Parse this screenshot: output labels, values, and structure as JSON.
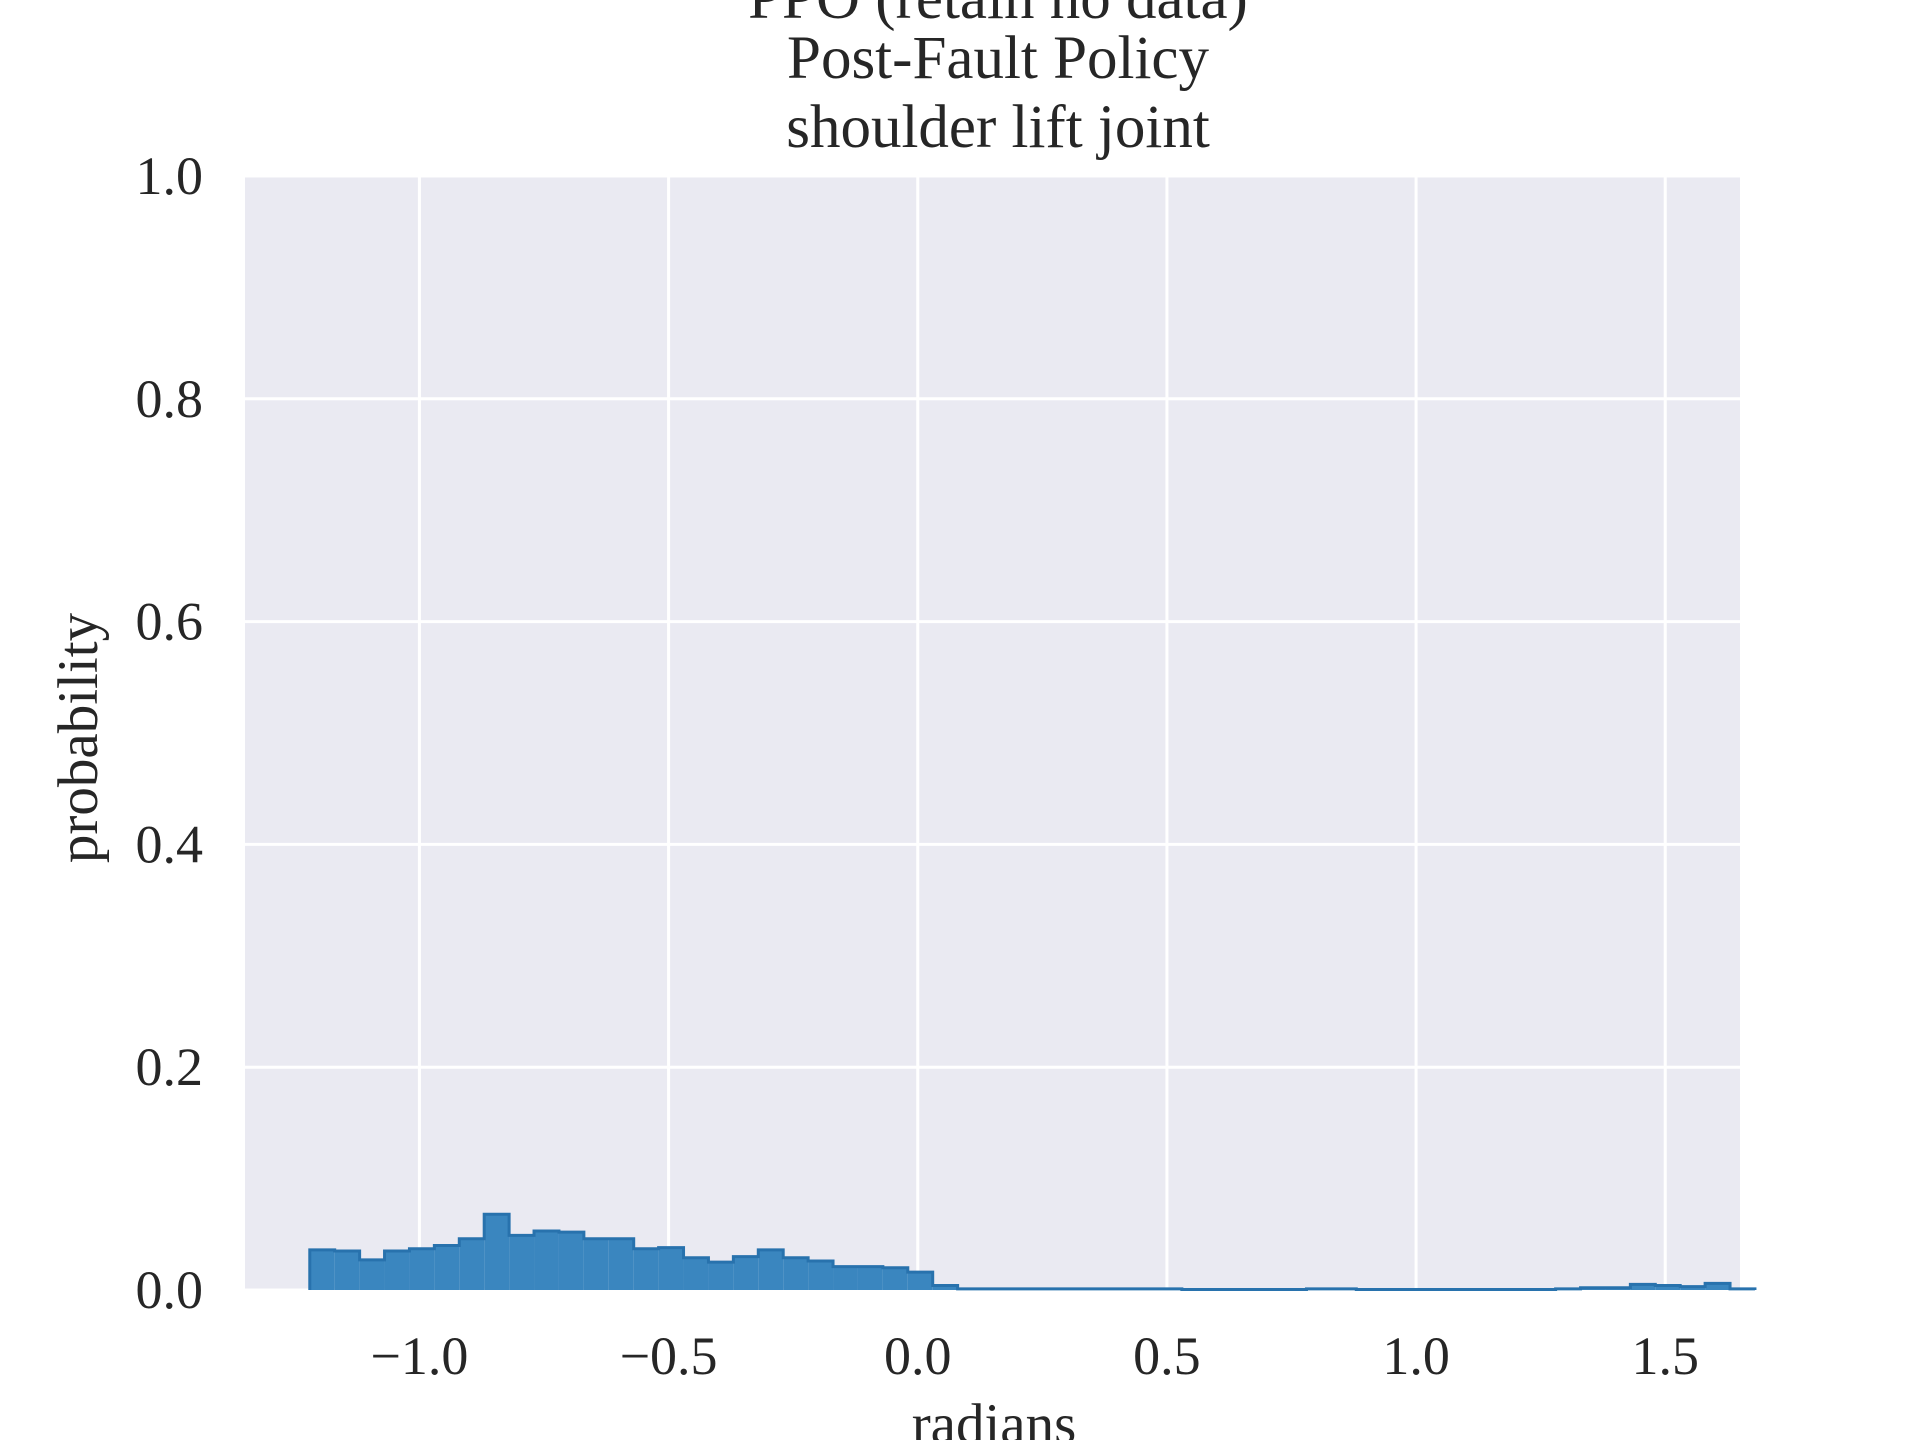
{
  "chart_data": {
    "type": "histogram",
    "title_lines": [
      "PPO (retain no data)",
      "Post-Fault Policy",
      "shoulder lift joint"
    ],
    "xlabel": "radians",
    "ylabel": "probability",
    "xlim": [
      -1.35,
      1.65
    ],
    "ylim": [
      0.0,
      1.0
    ],
    "xticks": [
      -1.0,
      -0.5,
      0.0,
      0.5,
      1.0,
      1.5
    ],
    "xtick_labels": [
      "−1.0",
      "−0.5",
      "0.0",
      "0.5",
      "1.0",
      "1.5"
    ],
    "yticks": [
      0.0,
      0.2,
      0.4,
      0.6,
      0.8,
      1.0
    ],
    "ytick_labels": [
      "0.0",
      "0.2",
      "0.4",
      "0.6",
      "0.8",
      "1.0"
    ],
    "grid": true,
    "bin_start": -1.22,
    "bin_width": 0.05,
    "values": [
      0.036,
      0.035,
      0.027,
      0.035,
      0.037,
      0.04,
      0.046,
      0.068,
      0.049,
      0.053,
      0.052,
      0.046,
      0.046,
      0.037,
      0.038,
      0.029,
      0.025,
      0.03,
      0.036,
      0.029,
      0.026,
      0.021,
      0.021,
      0.02,
      0.016,
      0.004,
      0.001,
      0.001,
      0.001,
      0.001,
      0.001,
      0.001,
      0.001,
      0.001,
      0.001,
      0.0005,
      0.0005,
      0.0005,
      0.0005,
      0.0005,
      0.001,
      0.001,
      0.0005,
      0.0005,
      0.0005,
      0.0005,
      0.0005,
      0.0005,
      0.0005,
      0.0005,
      0.001,
      0.002,
      0.002,
      0.005,
      0.004,
      0.003,
      0.006,
      0.001
    ],
    "colors": {
      "fill": "#3a86bf",
      "edge": "#2872ad",
      "plot_bg": "#eaeaf2",
      "grid": "#ffffff",
      "text": "#262626"
    }
  }
}
